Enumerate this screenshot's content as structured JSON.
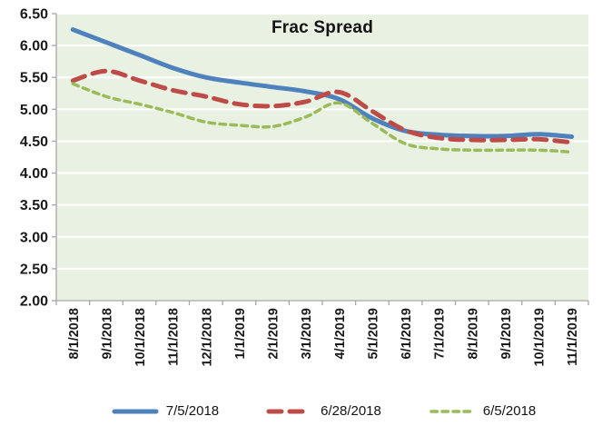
{
  "chart_data": {
    "type": "line",
    "title": "Frac Spread",
    "categories": [
      "8/1/2018",
      "9/1/2018",
      "10/1/2018",
      "11/1/2018",
      "12/1/2018",
      "1/1/2019",
      "2/1/2019",
      "3/1/2019",
      "4/1/2019",
      "5/1/2019",
      "6/1/2019",
      "7/1/2019",
      "8/1/2019",
      "9/1/2019",
      "10/1/2019",
      "11/1/2019"
    ],
    "series": [
      {
        "name": "7/5/2018",
        "color": "#4F81BD",
        "style": "solid",
        "values": [
          6.25,
          6.05,
          5.85,
          5.65,
          5.5,
          5.42,
          5.35,
          5.28,
          5.16,
          4.86,
          4.66,
          4.6,
          4.58,
          4.58,
          4.61,
          4.57
        ]
      },
      {
        "name": "6/28/2018",
        "color": "#BE4B48",
        "style": "dashed",
        "values": [
          5.45,
          5.6,
          5.45,
          5.3,
          5.2,
          5.08,
          5.05,
          5.12,
          5.27,
          4.97,
          4.67,
          4.55,
          4.52,
          4.52,
          4.53,
          4.48
        ]
      },
      {
        "name": "6/5/2018",
        "color": "#9BBB59",
        "style": "dotted",
        "values": [
          5.4,
          5.2,
          5.08,
          4.95,
          4.8,
          4.75,
          4.73,
          4.88,
          5.1,
          4.78,
          4.46,
          4.38,
          4.36,
          4.36,
          4.36,
          4.33
        ]
      }
    ],
    "ylim": [
      2.0,
      6.5
    ],
    "y_tick_labels": [
      "6.50",
      "6.00",
      "5.50",
      "5.00",
      "4.50",
      "4.00",
      "3.50",
      "3.00",
      "2.50",
      "2.00"
    ],
    "grid": "horizontal white gridlines on",
    "legend_position": "bottom",
    "plot_bg": "#E9F1E3",
    "axis_color": "#A6A6A6",
    "gridline_color": "#FFFFFF",
    "text_color": "#1A1A1A"
  }
}
